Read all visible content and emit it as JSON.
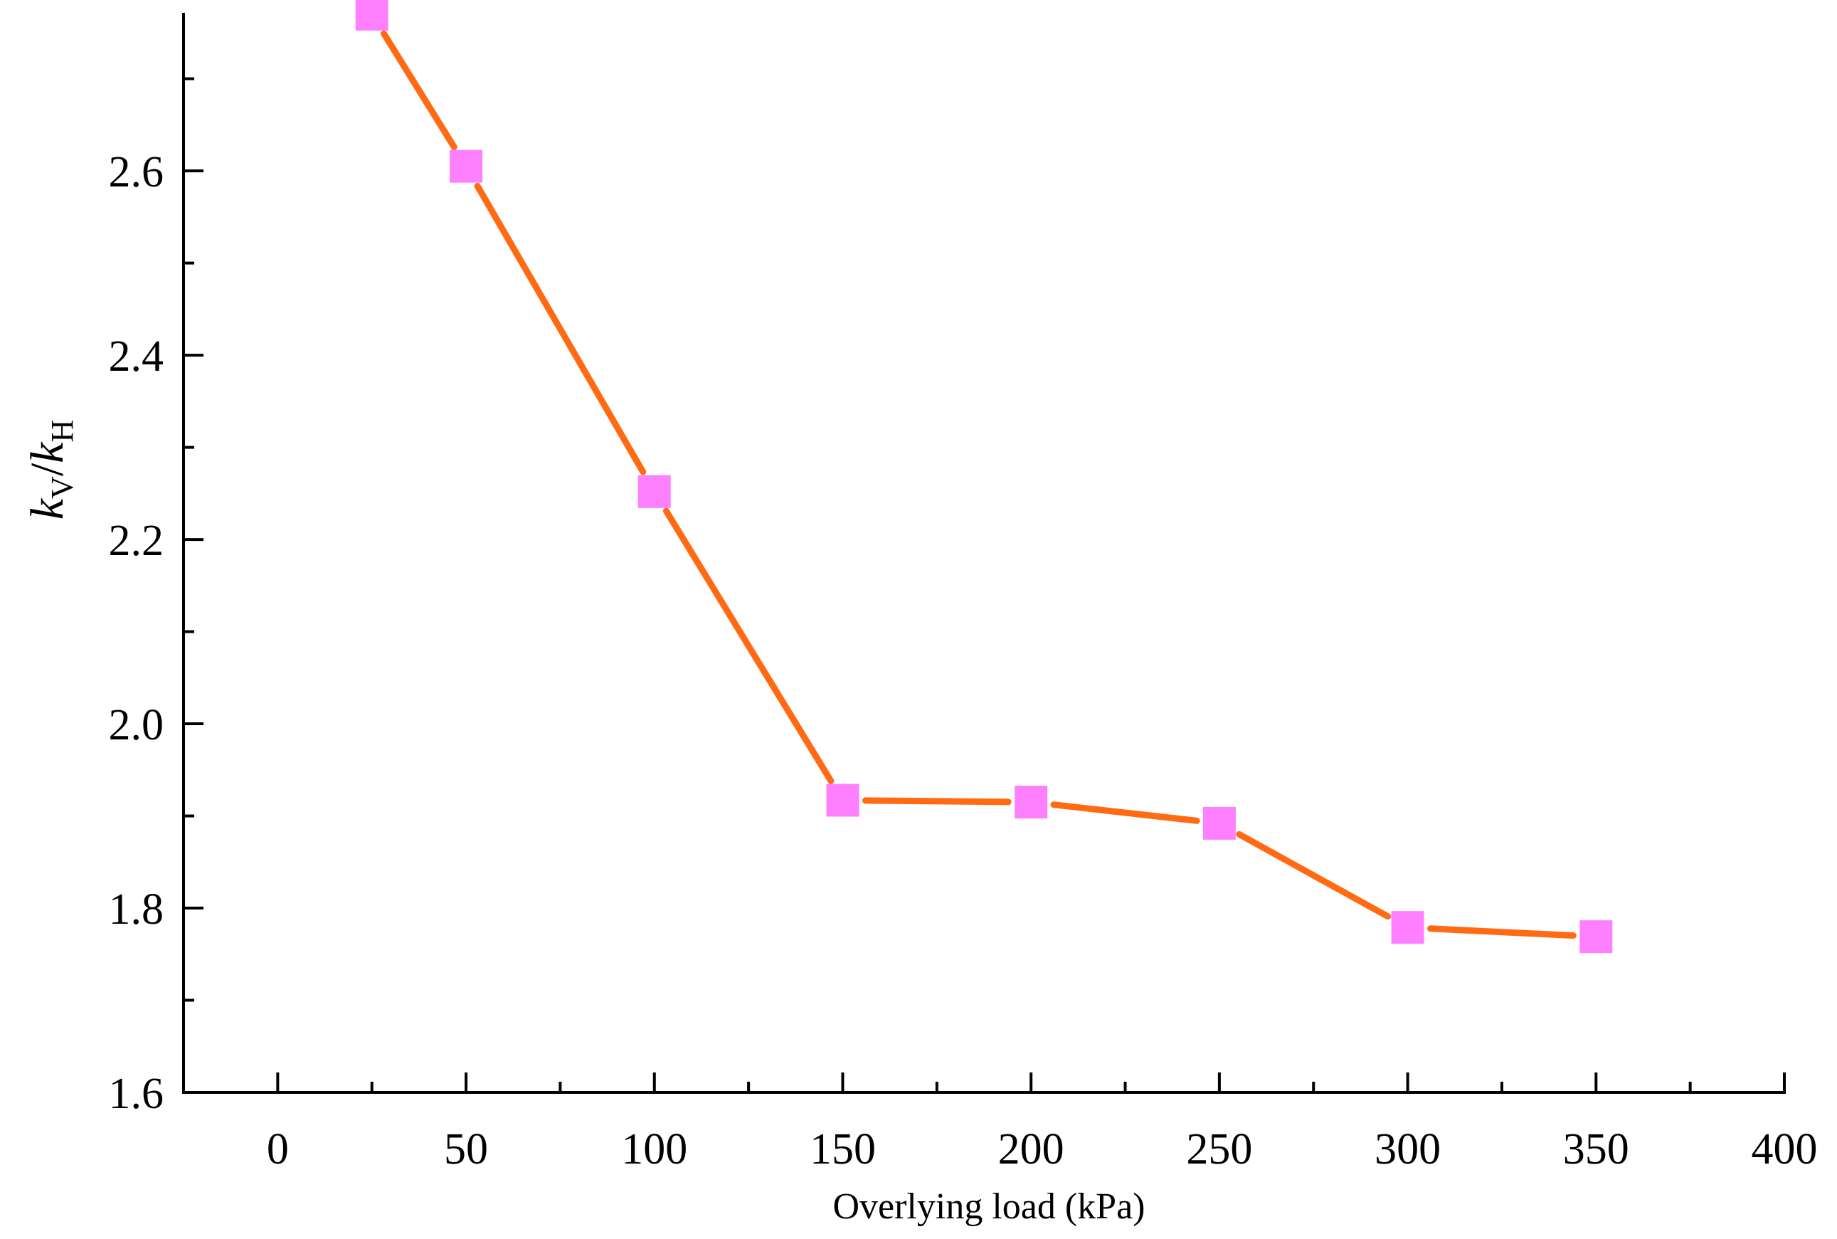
{
  "chart_data": {
    "type": "line",
    "title": "",
    "xlabel": "Overlying load (kPa)",
    "ylabel": {
      "var1": "k",
      "sub1": "V",
      "sep": "/",
      "var2": "k",
      "sub2": "H"
    },
    "xlim": [
      -25,
      400
    ],
    "ylim": [
      1.6,
      2.77
    ],
    "x_ticks": [
      0,
      50,
      100,
      150,
      200,
      250,
      300,
      350,
      400
    ],
    "x_tick_labels": [
      "0",
      "50",
      "100",
      "150",
      "200",
      "250",
      "300",
      "350",
      "400"
    ],
    "y_ticks": [
      1.6,
      1.8,
      2.0,
      2.2,
      2.4,
      2.6
    ],
    "y_tick_labels": [
      "1.6",
      "1.8",
      "2.0",
      "2.2",
      "2.4",
      "2.6"
    ],
    "grid": false,
    "legend": "none",
    "series": [
      {
        "name": "kV/kH",
        "x": [
          25,
          50,
          100,
          150,
          200,
          250,
          300,
          350
        ],
        "values": [
          2.77,
          2.605,
          2.252,
          1.917,
          1.915,
          1.892,
          1.779,
          1.769
        ],
        "line_color": "#ff6a13",
        "marker": "square",
        "marker_color": "#ff80ff"
      }
    ]
  }
}
